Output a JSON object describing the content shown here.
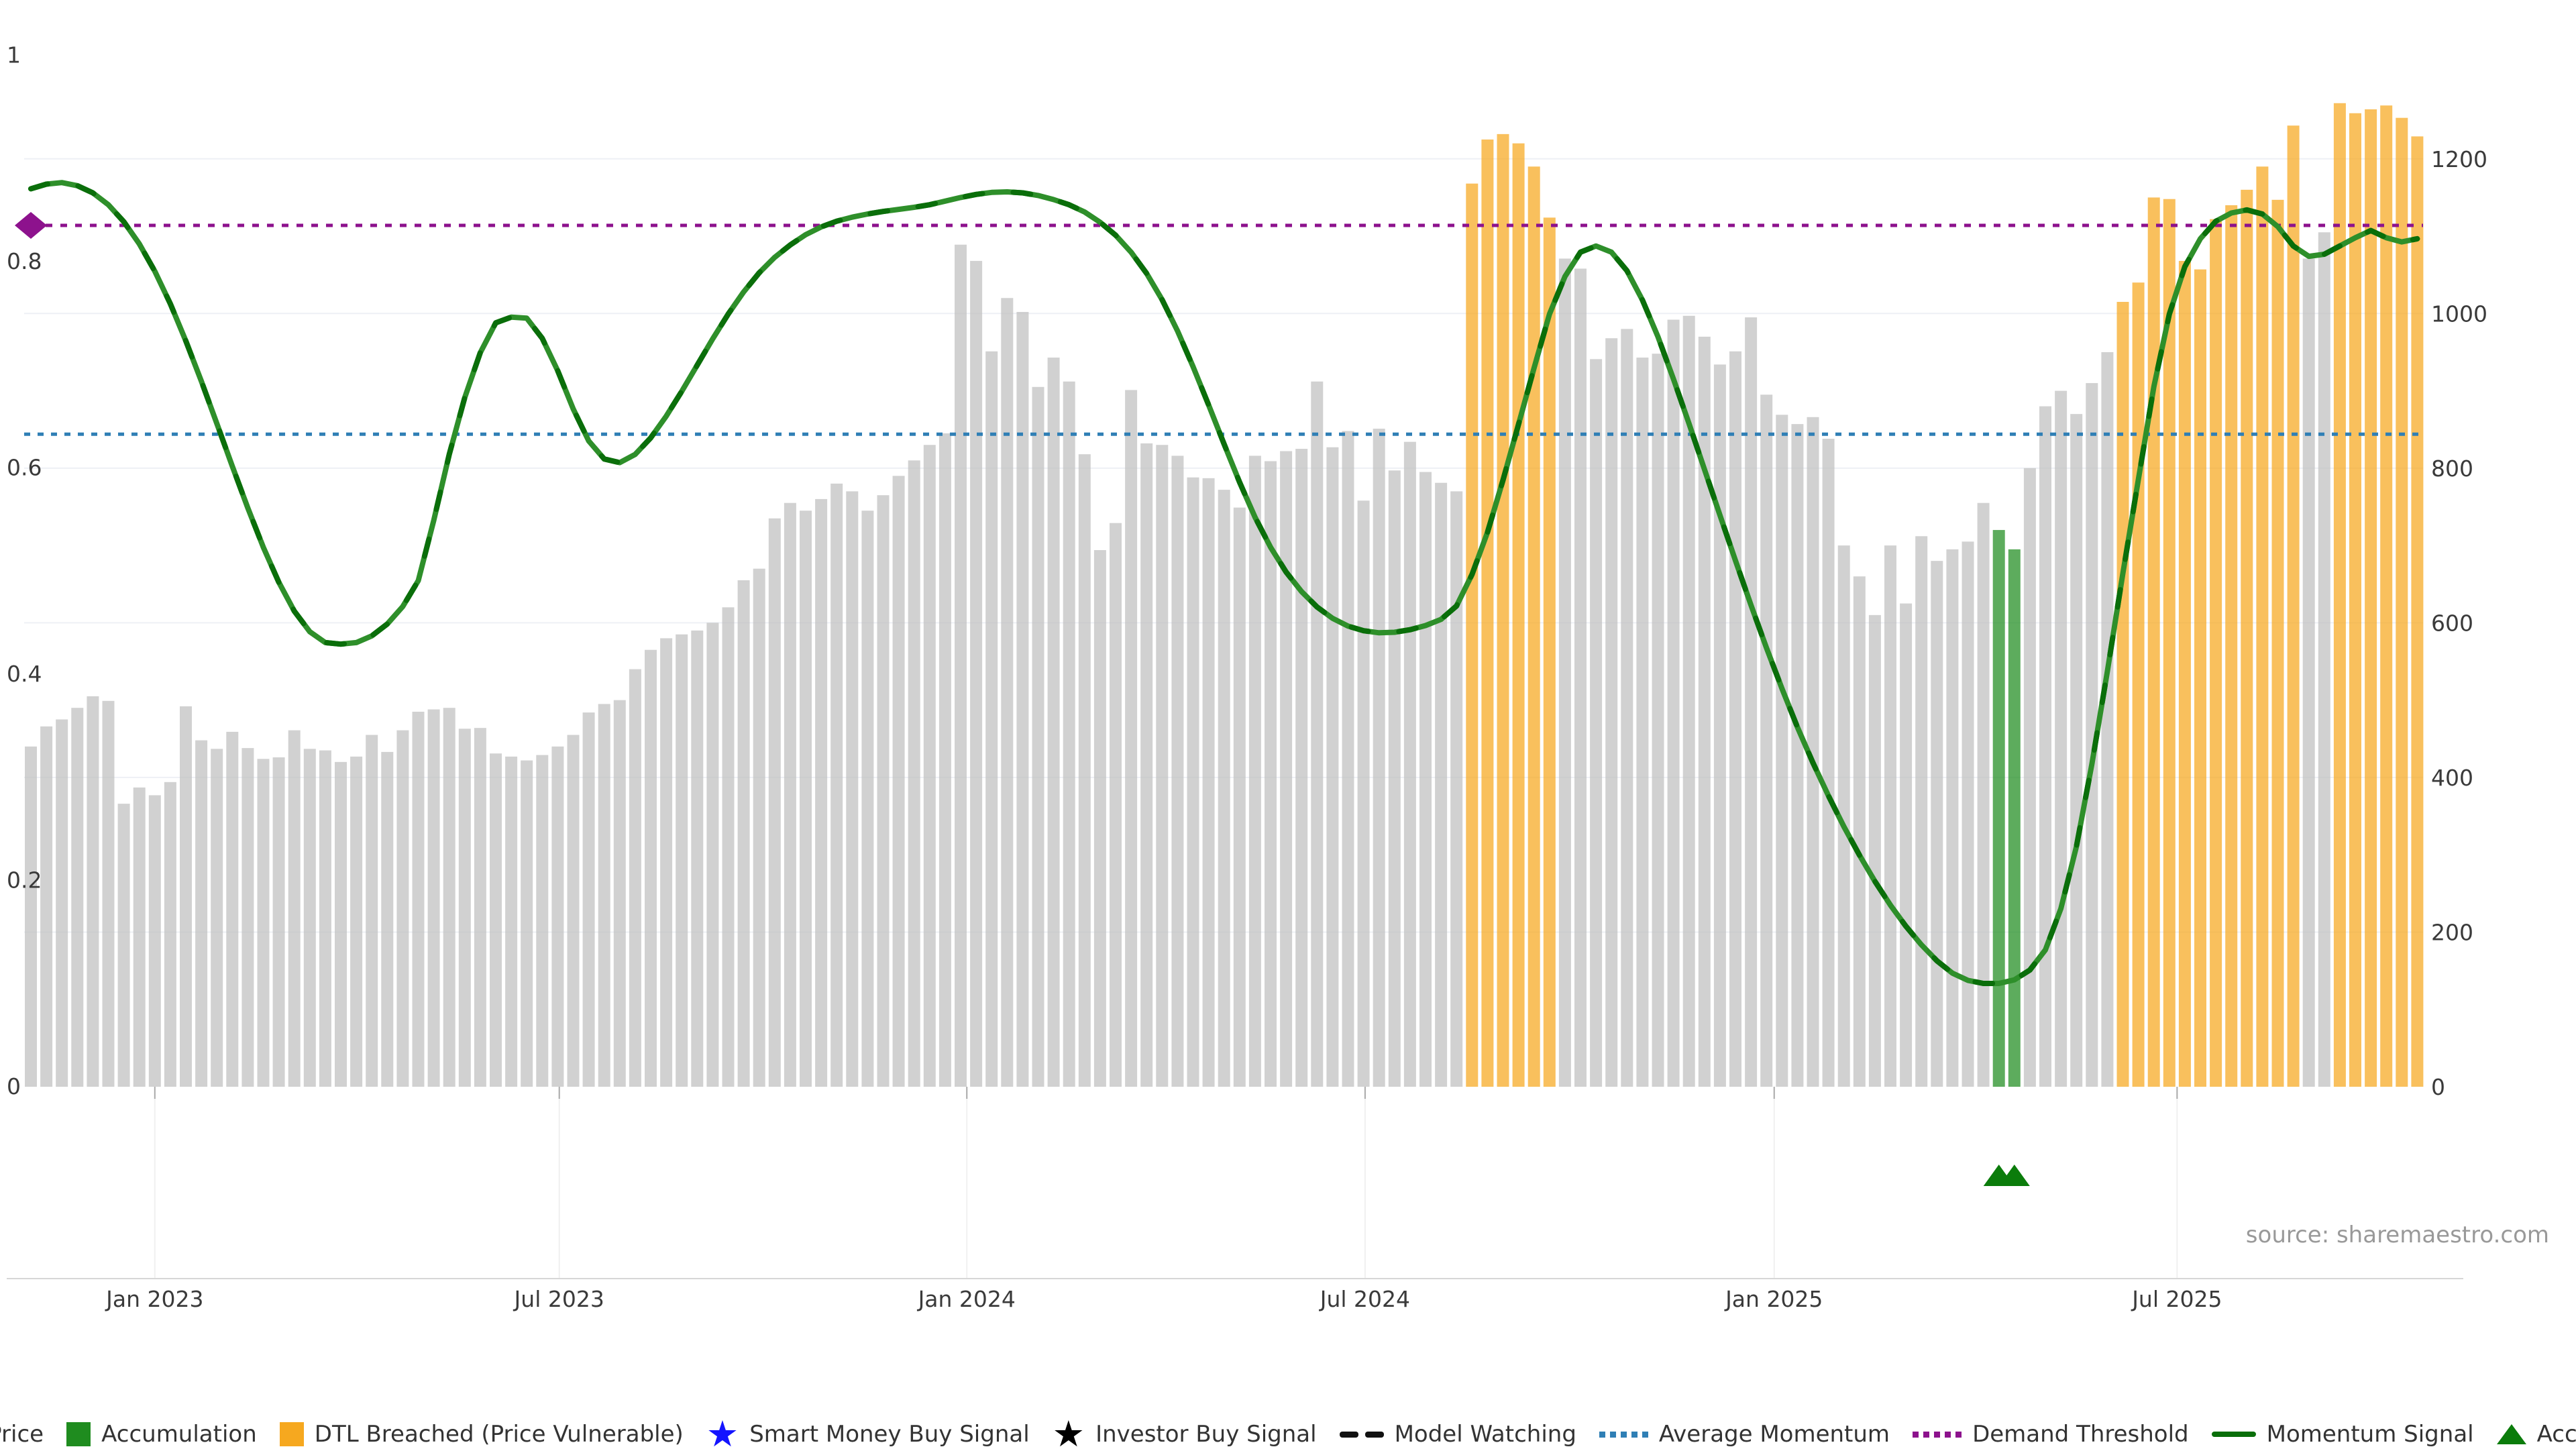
{
  "source_note": "source: sharemaestro.com",
  "colors": {
    "close_price": "#bfbfbf",
    "accumulation": "#1f8c1f",
    "dtl_breached": "#f6a81f",
    "momentum_line": "#2e8f2a",
    "momentum_dash": "#0a6e0a",
    "average_momentum": "#2f7fb5",
    "demand_threshold": "#8d128d",
    "marker_triangle": "#0b7c0b",
    "smart_money_star": "#1414ff",
    "investor_star": "#000000",
    "axis_text": "#3a3a3a",
    "grid": "#eef0f5",
    "source_text": "#999999"
  },
  "legend": [
    {
      "label": "Close Price",
      "icon": "gray-square"
    },
    {
      "label": "Accumulation",
      "icon": "green-square"
    },
    {
      "label": "DTL Breached (Price Vulnerable)",
      "icon": "orange-square"
    },
    {
      "label": "Smart Money Buy Signal",
      "icon": "blue-star"
    },
    {
      "label": "Investor Buy Signal",
      "icon": "black-star"
    },
    {
      "label": "Model Watching",
      "icon": "black-dashes"
    },
    {
      "label": "Average Momentum",
      "icon": "blue-dotted"
    },
    {
      "label": "Demand Threshold",
      "icon": "purple-dotted"
    },
    {
      "label": "Momentum Signal",
      "icon": "green-line"
    },
    {
      "label": "Accumulation",
      "icon": "green-triangle"
    }
  ],
  "chart_data": {
    "type": "bar",
    "title": "",
    "xlabel": "",
    "ylabel_left": "",
    "ylabel_right": "",
    "left_axis_ticks": [
      "0",
      "0.2",
      "0.4",
      "0.6",
      "0.8",
      "1"
    ],
    "left_axis_range": [
      0,
      1
    ],
    "right_axis_ticks": [
      "0",
      "200",
      "400",
      "600",
      "800",
      "1000",
      "1200"
    ],
    "right_axis_range": [
      0,
      1300
    ],
    "x_tick_labels": [
      "Jan 2023",
      "Jul 2023",
      "Jan 2024",
      "Jul 2024",
      "Jan 2025",
      "Jul 2025"
    ],
    "x_tick_week_index": [
      8.0,
      34.1,
      60.4,
      86.1,
      112.5,
      138.5
    ],
    "grid": "horizontal, every 200 right-axis units",
    "legend_position": "bottom center",
    "demand_threshold_value": 0.8345,
    "average_momentum_value": 0.632,
    "demand_threshold_marker_index": 0,
    "accumulation_bar_indices": [
      127,
      128
    ],
    "accumulation_marker_indices": [
      127,
      128
    ],
    "dtl_breached_ranges": [
      [
        93,
        98
      ],
      [
        135,
        146
      ],
      [
        149,
        154
      ]
    ],
    "series": [
      {
        "name": "Close Price (weekly, right axis)",
        "values": [
          440,
          466,
          475,
          490,
          505,
          499,
          366,
          387,
          377,
          394,
          492,
          448,
          437,
          459,
          438,
          424,
          426,
          461,
          437,
          435,
          420,
          427,
          455,
          433,
          461,
          485,
          488,
          490,
          463,
          464,
          431,
          427,
          422,
          429,
          440,
          455,
          484,
          495,
          500,
          540,
          565,
          580,
          585,
          590,
          600,
          620,
          655,
          670,
          735,
          755,
          745,
          760,
          780,
          770,
          745,
          765,
          790,
          810,
          830,
          845,
          1089,
          1068,
          951,
          1020,
          1002,
          905,
          943,
          912,
          818,
          694,
          729,
          901,
          832,
          830,
          816,
          788,
          787,
          772,
          749,
          816,
          809,
          822,
          825,
          912,
          827,
          848,
          758,
          851,
          797,
          834,
          795,
          781,
          770,
          1168,
          1225,
          1232,
          1220,
          1190,
          1124,
          1071,
          1058,
          941,
          968,
          980,
          943,
          948,
          992,
          997,
          970,
          934,
          951,
          995,
          895,
          869,
          857,
          866,
          838,
          700,
          660,
          610,
          700,
          625,
          712,
          680,
          695,
          705,
          755,
          720,
          695,
          800,
          880,
          900,
          870,
          910,
          950,
          1015,
          1040,
          1150,
          1148,
          1068,
          1057,
          1122,
          1140,
          1160,
          1190,
          1147,
          1243,
          1071,
          1105,
          1272,
          1259,
          1264,
          1269,
          1253,
          1229
        ]
      },
      {
        "name": "Momentum Signal (left axis 0-1)",
        "values": [
          0.87,
          0.8745,
          0.876,
          0.873,
          0.866,
          0.8545,
          0.838,
          0.8165,
          0.79,
          0.7585,
          0.7225,
          0.6835,
          0.6425,
          0.601,
          0.5605,
          0.5225,
          0.4885,
          0.4605,
          0.4405,
          0.43,
          0.4285,
          0.43,
          0.4365,
          0.448,
          0.465,
          0.49,
          0.5485,
          0.6125,
          0.6675,
          0.711,
          0.74,
          0.7455,
          0.7445,
          0.725,
          0.6935,
          0.6565,
          0.6255,
          0.608,
          0.6045,
          0.6125,
          0.6285,
          0.6495,
          0.6735,
          0.699,
          0.7245,
          0.7485,
          0.77,
          0.7885,
          0.8035,
          0.8155,
          0.8255,
          0.833,
          0.8385,
          0.8425,
          0.8455,
          0.848,
          0.85,
          0.852,
          0.8545,
          0.858,
          0.8615,
          0.8645,
          0.8665,
          0.867,
          0.866,
          0.8635,
          0.8595,
          0.8545,
          0.8475,
          0.8375,
          0.825,
          0.8085,
          0.788,
          0.7625,
          0.732,
          0.6975,
          0.6605,
          0.6225,
          0.5855,
          0.5515,
          0.5225,
          0.4985,
          0.4795,
          0.4645,
          0.4535,
          0.446,
          0.4415,
          0.4395,
          0.44,
          0.4425,
          0.4465,
          0.4525,
          0.4655,
          0.496,
          0.537,
          0.5875,
          0.6415,
          0.696,
          0.7485,
          0.785,
          0.8085,
          0.8145,
          0.8085,
          0.7905,
          0.762,
          0.7265,
          0.6855,
          0.6425,
          0.598,
          0.5535,
          0.5095,
          0.4665,
          0.425,
          0.3855,
          0.348,
          0.3135,
          0.2815,
          0.2515,
          0.224,
          0.1985,
          0.1755,
          0.155,
          0.137,
          0.1215,
          0.1095,
          0.1025,
          0.0995,
          0.0995,
          0.103,
          0.1125,
          0.132,
          0.172,
          0.232,
          0.312,
          0.402,
          0.497,
          0.588,
          0.678,
          0.7485,
          0.7945,
          0.8215,
          0.8385,
          0.8465,
          0.8495,
          0.8455,
          0.8333,
          0.8145,
          0.8045,
          0.8065,
          0.8145,
          0.8225,
          0.8295,
          0.8225,
          0.8185,
          0.8215
        ]
      }
    ]
  }
}
